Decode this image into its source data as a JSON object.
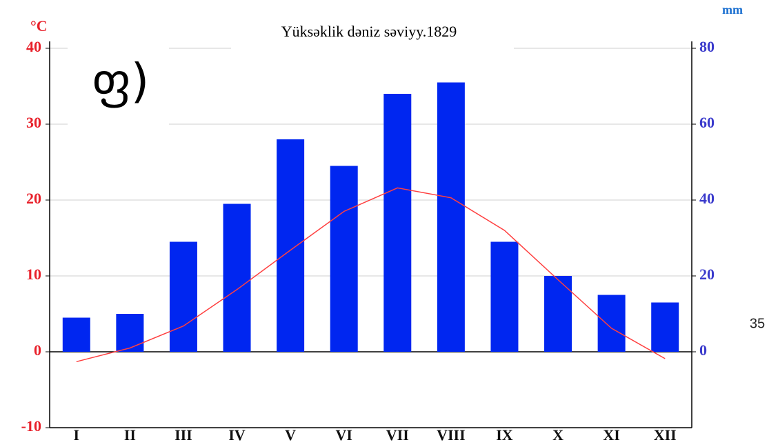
{
  "chart_data": {
    "type": "bar",
    "title": "Yüksəklik dəniz səviyy.1829",
    "annotation": "ფ)",
    "page_label": "35",
    "y_label": "°C",
    "y2_label": "mm",
    "categories": [
      "I",
      "II",
      "III",
      "IV",
      "V",
      "VI",
      "VII",
      "VIII",
      "IX",
      "X",
      "XI",
      "XII"
    ],
    "series": [
      {
        "type": "bar",
        "axis": "y2",
        "color": "#0026f0",
        "values": [
          9,
          10,
          29,
          39,
          56,
          49,
          68,
          71,
          29,
          20,
          15,
          13
        ]
      },
      {
        "type": "line",
        "axis": "y",
        "color": "#ff4040",
        "values": [
          -1.3,
          0.5,
          3.4,
          8.2,
          13.4,
          18.5,
          21.6,
          20.3,
          16,
          9.5,
          3.1,
          -0.9
        ]
      }
    ],
    "ylim": [
      -10,
      40
    ],
    "yticks": [
      -10,
      0,
      10,
      20,
      30,
      40
    ],
    "y2lim": [
      -20,
      80
    ],
    "y2ticks": [
      0,
      20,
      40,
      60,
      80
    ],
    "grid": true
  }
}
